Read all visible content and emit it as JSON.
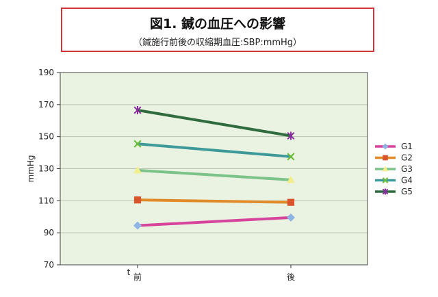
{
  "header": {
    "title": "図1. 鍼の血圧への影響",
    "subtitle": "（鍼施行前後の収縮期血圧:SBP:mmHg）"
  },
  "chart_data": {
    "type": "line",
    "title": "図1. 鍼の血圧への影響",
    "subtitle": "（鍼施行前後の収縮期血圧:SBP:mmHg）",
    "categories": [
      "前",
      "後"
    ],
    "category_prefix": "t",
    "xlabel": "",
    "ylabel": "mmHg",
    "ylim": [
      70,
      190
    ],
    "yticks": [
      70,
      90,
      110,
      130,
      150,
      170,
      190
    ],
    "grid": true,
    "legend": "right",
    "series": [
      {
        "name": "G1",
        "values": [
          94.5,
          99.5
        ],
        "color": "#d6449b",
        "marker": "diamond",
        "marker_color": "#8fb4e6"
      },
      {
        "name": "G2",
        "values": [
          110.5,
          109
        ],
        "color": "#e08a2a",
        "marker": "square",
        "marker_color": "#d9532b"
      },
      {
        "name": "G3",
        "values": [
          129,
          123
        ],
        "color": "#7cc38a",
        "marker": "triangle",
        "marker_color": "#f2ee8e"
      },
      {
        "name": "G4",
        "values": [
          145.5,
          137.5
        ],
        "color": "#3e9a9a",
        "marker": "x",
        "marker_color": "#6cbf3a"
      },
      {
        "name": "G5",
        "values": [
          166.5,
          150.5
        ],
        "color": "#2e6b3e",
        "marker": "star",
        "marker_color": "#8a2ca0"
      }
    ]
  }
}
